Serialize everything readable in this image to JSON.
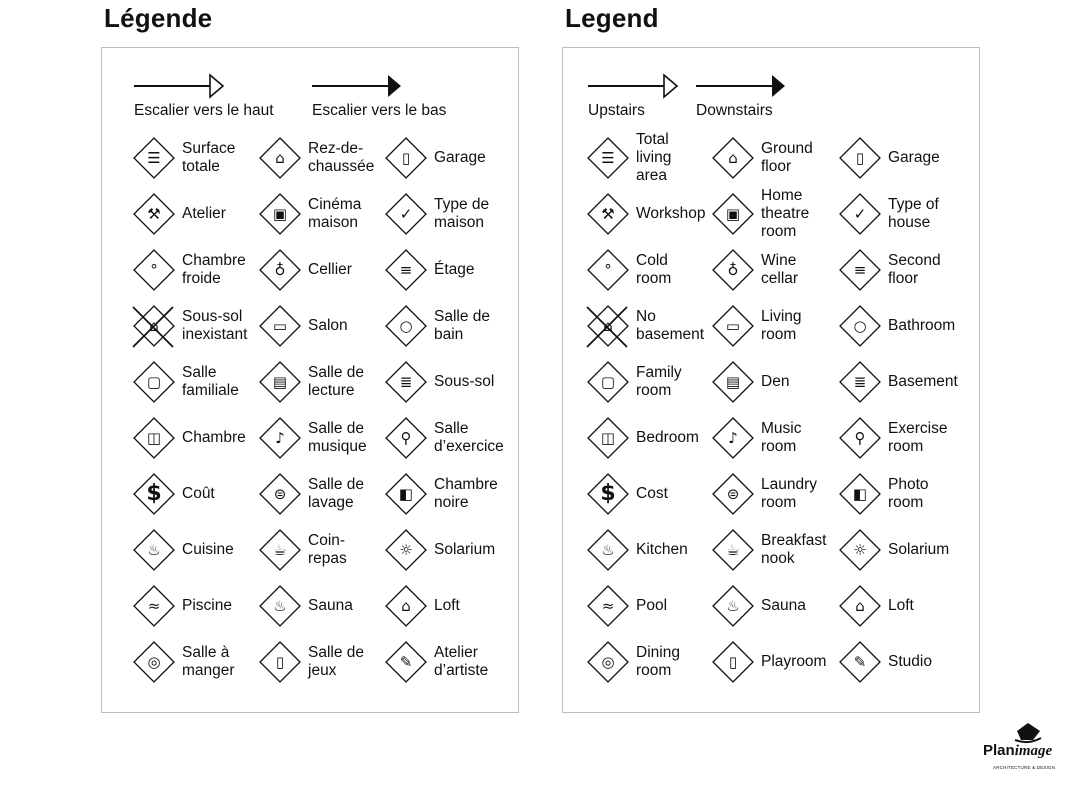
{
  "panels": [
    {
      "title": "Légende",
      "stairs_up": "Escalier vers le haut",
      "stairs_down": "Escalier vers le bas",
      "items": [
        {
          "label": "Surface\ntotale",
          "icon": "total-area-icon"
        },
        {
          "label": "Rez-de-\nchaussée",
          "icon": "ground-floor-icon"
        },
        {
          "label": "Garage",
          "icon": "garage-icon"
        },
        {
          "label": "Atelier",
          "icon": "hammer-icon"
        },
        {
          "label": "Cinéma\nmaison",
          "icon": "projector-icon"
        },
        {
          "label": "Type de\nmaison",
          "icon": "checkmark-house-icon"
        },
        {
          "label": "Chambre\nfroide",
          "icon": "thermometer-icon"
        },
        {
          "label": "Cellier",
          "icon": "wine-icon"
        },
        {
          "label": "Étage",
          "icon": "second-floor-icon"
        },
        {
          "label": "Sous-sol\ninexistant",
          "icon": "no-basement-icon"
        },
        {
          "label": "Salon",
          "icon": "sofa-icon"
        },
        {
          "label": "Salle de\nbain",
          "icon": "toilet-icon"
        },
        {
          "label": "Salle\nfamiliale",
          "icon": "tv-icon"
        },
        {
          "label": "Salle de\nlecture",
          "icon": "book-icon"
        },
        {
          "label": "Sous-sol",
          "icon": "basement-icon"
        },
        {
          "label": "Chambre",
          "icon": "bed-icon"
        },
        {
          "label": "Salle de\nmusique",
          "icon": "music-note-icon"
        },
        {
          "label": "Salle\nd’exercice",
          "icon": "weightlifter-icon"
        },
        {
          "label": "Coût",
          "icon": "dollar-icon"
        },
        {
          "label": "Salle de\nlavage",
          "icon": "washer-icon"
        },
        {
          "label": "Chambre\nnoire",
          "icon": "camera-icon"
        },
        {
          "label": "Cuisine",
          "icon": "pot-icon"
        },
        {
          "label": "Coin-\nrepas",
          "icon": "coffee-cup-icon"
        },
        {
          "label": "Solarium",
          "icon": "sun-icon"
        },
        {
          "label": "Piscine",
          "icon": "swimmer-icon"
        },
        {
          "label": "Sauna",
          "icon": "sauna-icon"
        },
        {
          "label": "Loft",
          "icon": "loft-icon"
        },
        {
          "label": "Salle à\nmanger",
          "icon": "plate-cutlery-icon"
        },
        {
          "label": "Salle de\njeux",
          "icon": "playroom-icon"
        },
        {
          "label": "Atelier\nd’artiste",
          "icon": "palette-icon"
        }
      ]
    },
    {
      "title": "Legend",
      "stairs_up": "Upstairs",
      "stairs_down": "Downstairs",
      "items": [
        {
          "label": "Total\nliving\narea",
          "icon": "total-area-icon"
        },
        {
          "label": "Ground\nfloor",
          "icon": "ground-floor-icon"
        },
        {
          "label": "Garage",
          "icon": "garage-icon"
        },
        {
          "label": "Workshop",
          "icon": "hammer-icon"
        },
        {
          "label": "Home\ntheatre\nroom",
          "icon": "projector-icon"
        },
        {
          "label": "Type of\nhouse",
          "icon": "checkmark-house-icon"
        },
        {
          "label": "Cold\nroom",
          "icon": "thermometer-icon"
        },
        {
          "label": "Wine\ncellar",
          "icon": "wine-icon"
        },
        {
          "label": "Second\nfloor",
          "icon": "second-floor-icon"
        },
        {
          "label": "No\nbasement",
          "icon": "no-basement-icon"
        },
        {
          "label": "Living\nroom",
          "icon": "sofa-icon"
        },
        {
          "label": "Bathroom",
          "icon": "toilet-icon"
        },
        {
          "label": "Family\nroom",
          "icon": "tv-icon"
        },
        {
          "label": "Den",
          "icon": "book-icon"
        },
        {
          "label": "Basement",
          "icon": "basement-icon"
        },
        {
          "label": "Bedroom",
          "icon": "bed-icon"
        },
        {
          "label": "Music\nroom",
          "icon": "music-note-icon"
        },
        {
          "label": "Exercise\nroom",
          "icon": "weightlifter-icon"
        },
        {
          "label": "Cost",
          "icon": "dollar-icon"
        },
        {
          "label": "Laundry\nroom",
          "icon": "washer-icon"
        },
        {
          "label": "Photo\nroom",
          "icon": "camera-icon"
        },
        {
          "label": "Kitchen",
          "icon": "pot-icon"
        },
        {
          "label": "Breakfast\nnook",
          "icon": "coffee-cup-icon"
        },
        {
          "label": "Solarium",
          "icon": "sun-icon"
        },
        {
          "label": "Pool",
          "icon": "swimmer-icon"
        },
        {
          "label": "Sauna",
          "icon": "sauna-icon"
        },
        {
          "label": "Loft",
          "icon": "loft-icon"
        },
        {
          "label": "Dining\nroom",
          "icon": "plate-cutlery-icon"
        },
        {
          "label": "Playroom",
          "icon": "playroom-icon"
        },
        {
          "label": "Studio",
          "icon": "palette-icon"
        }
      ]
    }
  ],
  "logo": {
    "name": "PlanImage",
    "tagline": "ARCHITECTURE & DESIGN"
  }
}
